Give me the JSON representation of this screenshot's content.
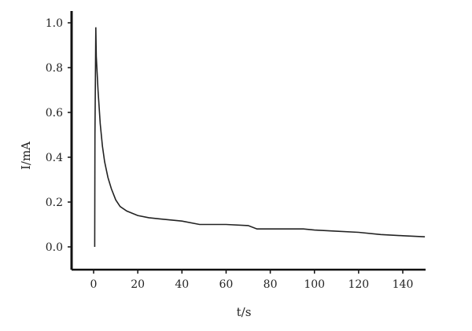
{
  "chart_data": {
    "type": "line",
    "title": "",
    "xlabel": "t/s",
    "ylabel": "I/mA",
    "xlim": [
      -9,
      150
    ],
    "ylim": [
      -0.1,
      1.05
    ],
    "xticks": [
      0,
      20,
      40,
      60,
      80,
      100,
      120,
      140
    ],
    "yticks": [
      0.0,
      0.2,
      0.4,
      0.6,
      0.8,
      1.0
    ],
    "ytick_labels": [
      "0.0",
      "0.2",
      "0.4",
      "0.6",
      "0.8",
      "1.0"
    ],
    "grid": false,
    "series": [
      {
        "color": "#222222",
        "x": [
          0.5,
          0.6,
          1.0,
          1.2,
          2.0,
          3.0,
          4.0,
          5.0,
          6.5,
          8.0,
          10.0,
          12.0,
          15.0,
          20.0,
          25.0,
          30.0,
          40.0,
          48.0,
          60.0,
          70.0,
          74.0,
          80.0,
          95.0,
          100.0,
          110.0,
          120.0,
          130.0,
          140.0,
          150.0
        ],
        "y": [
          0.0,
          0.5,
          0.98,
          0.85,
          0.7,
          0.55,
          0.45,
          0.38,
          0.31,
          0.26,
          0.21,
          0.18,
          0.16,
          0.14,
          0.13,
          0.125,
          0.115,
          0.1,
          0.1,
          0.095,
          0.08,
          0.08,
          0.08,
          0.075,
          0.07,
          0.065,
          0.055,
          0.05,
          0.045
        ]
      }
    ]
  }
}
